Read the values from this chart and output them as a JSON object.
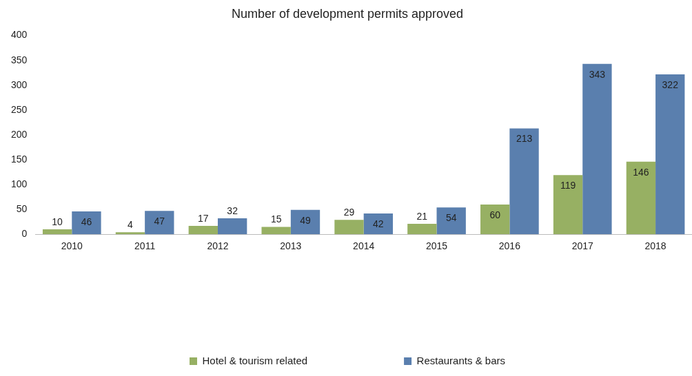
{
  "chart_data": {
    "type": "bar",
    "title": "Number of development permits approved",
    "categories": [
      "2010",
      "2011",
      "2012",
      "2013",
      "2014",
      "2015",
      "2016",
      "2017",
      "2018"
    ],
    "series": [
      {
        "name": "Hotel & tourism related",
        "color": "#97b063",
        "values": [
          10,
          4,
          17,
          15,
          29,
          21,
          60,
          119,
          146
        ]
      },
      {
        "name": "Restaurants & bars",
        "color": "#5a7fae",
        "values": [
          46,
          47,
          32,
          49,
          42,
          54,
          213,
          343,
          322
        ]
      }
    ],
    "ylim": [
      0,
      400
    ],
    "yticks": [
      0,
      50,
      100,
      150,
      200,
      250,
      300,
      350,
      400
    ],
    "grid": false,
    "legend": "bottom",
    "data_labels": true
  }
}
